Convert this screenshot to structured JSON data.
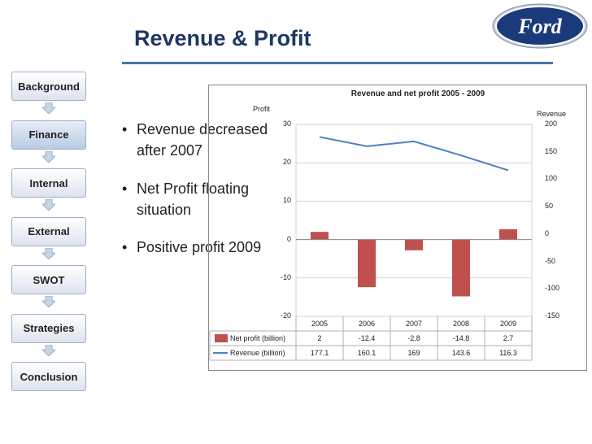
{
  "slide": {
    "title": "Revenue & Profit"
  },
  "logo": {
    "text": "Ford"
  },
  "nav": {
    "items": [
      {
        "label": "Background",
        "active": false
      },
      {
        "label": "Finance",
        "active": true
      },
      {
        "label": "Internal",
        "active": false
      },
      {
        "label": "External",
        "active": false
      },
      {
        "label": "SWOT",
        "active": false
      },
      {
        "label": "Strategies",
        "active": false
      },
      {
        "label": "Conclusion",
        "active": false
      }
    ]
  },
  "bullets": [
    {
      "symbol": "•",
      "text": "Revenue decreased after 2007"
    },
    {
      "symbol": "•",
      "text": "Net Profit floating situation"
    },
    {
      "symbol": "•",
      "text": "Positive profit 2009"
    }
  ],
  "colors": {
    "title": "#1f3763",
    "bar": "#c0504d",
    "line": "#4f81bd",
    "rule": "#4a72b0"
  },
  "chart_data": {
    "type": "bar",
    "title": "Revenue and net profit 2005 - 2009",
    "categories": [
      "2005",
      "2006",
      "2007",
      "2008",
      "2009"
    ],
    "series": [
      {
        "name": "Net profit (billion)",
        "type": "bar",
        "axis": "left",
        "values": [
          2,
          -12.4,
          -2.8,
          -14.8,
          2.7
        ],
        "labels": [
          "2",
          "-12.4",
          "-2.8",
          "-14.8",
          "2.7"
        ]
      },
      {
        "name": "Revenue (billion)",
        "type": "line",
        "axis": "right",
        "values": [
          177.1,
          160.1,
          169,
          143.6,
          116.3
        ],
        "labels": [
          "177.1",
          "160.1",
          "169",
          "143.6",
          "116.3"
        ]
      }
    ],
    "left_axis": {
      "label": "Profit",
      "min": -20,
      "max": 30,
      "ticks": [
        30,
        20,
        10,
        0,
        -10,
        -20
      ]
    },
    "right_axis": {
      "label": "Revenue",
      "min": -150,
      "max": 200,
      "ticks": [
        200,
        150,
        100,
        50,
        0,
        -50,
        -100,
        -150
      ]
    },
    "grid": true,
    "legend": "data-table-bottom"
  }
}
